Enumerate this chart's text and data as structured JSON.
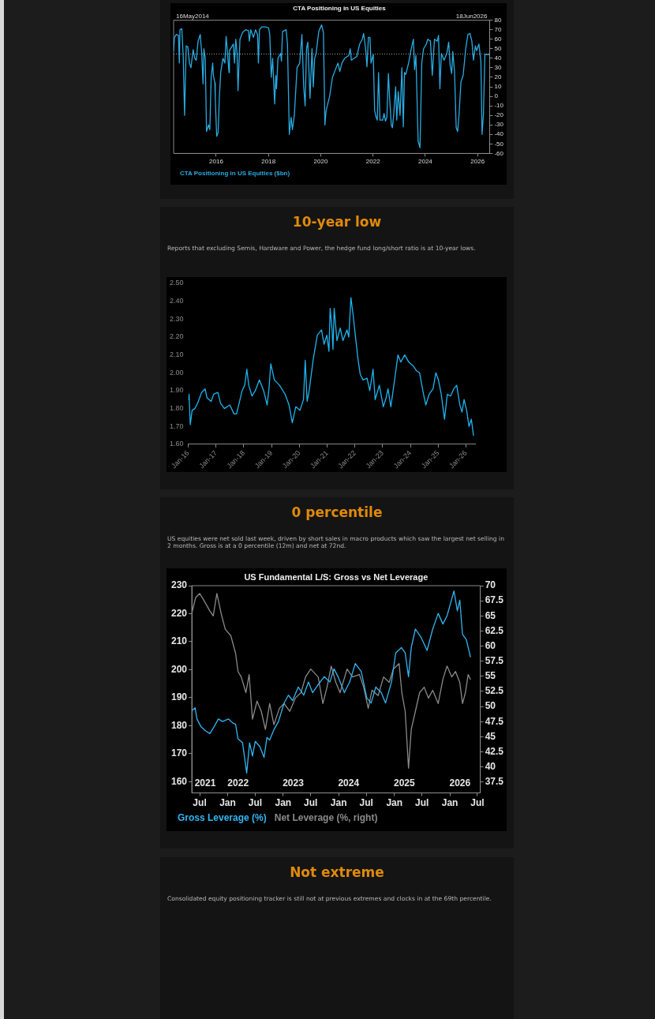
{
  "chart_data": [
    {
      "type": "line",
      "title": "CTA Positioning in US Equities",
      "legend": "bottom left",
      "xlim": [
        "2014-05-16",
        "2026-06-18"
      ],
      "xticks": [
        "2016",
        "2018",
        "2020",
        "2022",
        "2024",
        "2026"
      ],
      "y2lim": [
        -60,
        80
      ],
      "y2ticks": [
        -60,
        -50,
        -40,
        -30,
        -20,
        -10,
        0,
        10,
        20,
        30,
        40,
        50,
        60,
        70,
        80
      ],
      "ref_lines": [
        {
          "axis": "y2",
          "value": 44.5,
          "color": "#aaaaaa",
          "line_style": "dotted"
        }
      ],
      "annotations": [
        "16May2014",
        "18Jun2026"
      ],
      "series": [
        {
          "name": "CTA Positioning in US Equities ($bn)",
          "color": "#29abe2",
          "axis": "y2",
          "x": [
            "2014-05-16",
            "2014-05-28",
            "2014-06-23",
            "2014-07-23",
            "2014-08-04",
            "2014-08-13",
            "2014-09-08",
            "2014-09-28",
            "2014-10-16",
            "2014-11-08",
            "2014-12-01",
            "2014-12-23",
            "2015-01-13",
            "2015-02-13",
            "2015-03-08",
            "2015-03-28",
            "2015-04-23",
            "2015-05-23",
            "2015-06-13",
            "2015-07-01",
            "2015-07-13",
            "2015-08-01",
            "2015-08-19",
            "2015-09-16",
            "2015-10-04",
            "2015-10-23",
            "2015-11-13",
            "2015-11-23",
            "2015-12-13",
            "2015-12-19",
            "2016-01-08",
            "2016-01-28",
            "2016-02-15",
            "2016-03-04",
            "2016-04-04",
            "2016-05-01",
            "2016-05-19",
            "2016-06-08",
            "2016-06-28",
            "2016-07-04",
            "2016-08-04",
            "2016-08-28",
            "2016-09-13",
            "2016-10-01",
            "2016-10-19",
            "2016-11-01",
            "2016-11-28",
            "2017-01-04",
            "2017-02-13",
            "2017-03-28",
            "2017-04-08",
            "2017-04-28",
            "2017-06-04",
            "2017-07-04",
            "2017-08-01",
            "2017-08-13",
            "2017-08-28",
            "2017-09-28",
            "2017-11-23",
            "2018-01-01",
            "2018-01-19",
            "2018-02-08",
            "2018-02-28",
            "2018-03-28",
            "2018-04-13",
            "2018-04-23",
            "2018-05-13",
            "2018-06-19",
            "2018-07-01",
            "2018-07-16",
            "2018-09-04",
            "2018-09-23",
            "2018-10-19",
            "2018-11-13",
            "2018-12-01",
            "2018-12-28",
            "2019-02-04",
            "2019-03-13",
            "2019-04-13",
            "2019-05-08",
            "2019-05-28",
            "2019-06-16",
            "2019-07-04",
            "2019-08-04",
            "2019-09-01",
            "2019-09-19",
            "2019-10-08",
            "2019-10-28",
            "2019-12-04",
            "2020-01-13",
            "2020-02-08",
            "2020-02-28",
            "2020-03-16",
            "2020-05-04",
            "2020-06-13",
            "2020-08-28",
            "2020-09-23",
            "2020-10-23",
            "2020-12-01",
            "2021-01-28",
            "2021-02-16",
            "2021-03-04",
            "2021-04-13",
            "2021-05-19",
            "2021-06-28",
            "2021-08-04",
            "2021-08-23",
            "2021-09-19",
            "2021-10-08",
            "2021-10-28",
            "2021-11-19",
            "2021-12-04",
            "2022-01-04",
            "2022-01-23",
            "2022-02-13",
            "2022-03-01",
            "2022-03-19",
            "2022-04-08",
            "2022-05-16",
            "2022-06-04",
            "2022-06-23",
            "2022-07-13",
            "2022-08-04",
            "2022-08-19",
            "2022-09-13",
            "2022-09-28",
            "2022-10-16",
            "2022-11-13",
            "2022-11-28",
            "2022-12-19",
            "2023-01-13",
            "2023-02-08",
            "2023-02-28",
            "2023-03-16",
            "2023-04-04",
            "2023-05-13",
            "2023-06-13",
            "2023-07-19",
            "2023-08-04",
            "2023-08-23",
            "2023-09-23",
            "2023-10-19",
            "2023-11-13",
            "2023-12-08",
            "2024-01-16",
            "2024-02-04",
            "2024-03-13",
            "2024-04-08",
            "2024-05-08",
            "2024-06-16",
            "2024-07-04",
            "2024-07-23",
            "2024-08-13",
            "2024-09-19",
            "2024-10-28",
            "2024-11-23",
            "2024-12-13",
            "2025-01-04",
            "2025-01-19",
            "2025-02-13",
            "2025-03-08",
            "2025-03-28",
            "2025-04-16",
            "2025-05-13",
            "2025-06-13",
            "2025-07-19",
            "2025-08-19",
            "2025-09-16",
            "2025-10-13",
            "2025-11-04",
            "2025-12-01",
            "2025-12-19",
            "2026-01-19",
            "2026-02-16",
            "2026-03-04",
            "2026-03-23",
            "2026-04-13",
            "2026-06-18"
          ],
          "values": [
            48,
            62,
            65,
            64,
            35,
            70,
            71,
            40,
            -20,
            53,
            52,
            35,
            30,
            49,
            40,
            38,
            58,
            65,
            45,
            13,
            50,
            40,
            -37,
            -30,
            -35,
            20,
            35,
            22,
            14,
            -2,
            -42,
            -38,
            0,
            25,
            40,
            35,
            63,
            45,
            25,
            48,
            52,
            55,
            35,
            60,
            45,
            6,
            60,
            67,
            70,
            69,
            58,
            70,
            62,
            70,
            65,
            35,
            70,
            73,
            73,
            72,
            65,
            20,
            40,
            -8,
            22,
            8,
            40,
            45,
            37,
            68,
            70,
            55,
            -40,
            -22,
            -35,
            -20,
            30,
            35,
            65,
            10,
            -10,
            50,
            57,
            -2,
            50,
            10,
            40,
            45,
            68,
            75,
            67,
            -30,
            -15,
            0,
            20,
            35,
            26,
            35,
            40,
            43,
            50,
            38,
            40,
            42,
            55,
            60,
            66,
            50,
            31,
            62,
            62,
            35,
            44,
            -15,
            -22,
            -25,
            25,
            -25,
            -25,
            -18,
            -26,
            -22,
            24,
            0,
            -30,
            -33,
            -20,
            10,
            -25,
            5,
            -20,
            30,
            -32,
            25,
            23,
            35,
            48,
            60,
            28,
            43,
            -47,
            -54,
            35,
            50,
            55,
            60,
            58,
            22,
            60,
            58,
            64,
            8,
            45,
            38,
            45,
            57,
            33,
            24,
            47,
            25,
            -33,
            -37,
            -20,
            15,
            22,
            50,
            65,
            66,
            58,
            38,
            53,
            48,
            55,
            37,
            -40,
            -20,
            44,
            44
          ]
        }
      ]
    },
    {
      "type": "line",
      "title": "10-year low",
      "subtitle": "Reports that excluding Semis, Hardware and Power, the hedge fund long/short ratio is at 10-year lows.",
      "xlim": [
        "2016-01-01",
        "2026-05-01"
      ],
      "xticks": [
        {
          "value": "2016-01",
          "label": "Jan-16"
        },
        {
          "value": "2017-01",
          "label": "Jan-17"
        },
        {
          "value": "2018-01",
          "label": "Jan-18"
        },
        {
          "value": "2019-01",
          "label": "Jan-19"
        },
        {
          "value": "2020-01",
          "label": "Jan-20"
        },
        {
          "value": "2021-01",
          "label": "Jan-21"
        },
        {
          "value": "2022-01",
          "label": "Jan-22"
        },
        {
          "value": "2023-01",
          "label": "Jan-23"
        },
        {
          "value": "2024-01",
          "label": "Jan-24"
        },
        {
          "value": "2025-01",
          "label": "Jan-25"
        },
        {
          "value": "2026-01",
          "label": "Jan-26"
        }
      ],
      "ylim": [
        1.6,
        2.5
      ],
      "yticks": [
        {
          "value": 1.6,
          "label": "1.60"
        },
        {
          "value": 1.7,
          "label": "1.70"
        },
        {
          "value": 1.8,
          "label": "1.80"
        },
        {
          "value": 1.9,
          "label": "1.90"
        },
        {
          "value": 2.0,
          "label": "2.00"
        },
        {
          "value": 2.1,
          "label": "2.10"
        },
        {
          "value": 2.2,
          "label": "2.20"
        },
        {
          "value": 2.3,
          "label": "2.30"
        },
        {
          "value": 2.4,
          "label": "2.40"
        },
        {
          "value": 2.5,
          "label": "2.50"
        }
      ],
      "series": [
        {
          "color": "#1eb4ee",
          "x": [
            "2016-01-05",
            "2016-01-12",
            "2016-01-28",
            "2016-02-21",
            "2016-03-28",
            "2016-05-04",
            "2016-06-25",
            "2016-08-10",
            "2016-09-04",
            "2016-10-28",
            "2016-12-01",
            "2017-01-25",
            "2017-03-01",
            "2017-04-21",
            "2017-07-01",
            "2017-08-25",
            "2017-09-28",
            "2017-12-10",
            "2018-01-13",
            "2018-02-10",
            "2018-03-07",
            "2018-04-19",
            "2018-06-01",
            "2018-07-25",
            "2018-09-19",
            "2018-11-04",
            "2018-11-28",
            "2018-12-22",
            "2019-02-07",
            "2019-04-16",
            "2019-06-28",
            "2019-08-19",
            "2019-10-01",
            "2019-11-16",
            "2020-01-10",
            "2020-02-25",
            "2020-03-19",
            "2020-04-13",
            "2020-05-10",
            "2020-07-04",
            "2020-08-25",
            "2020-10-19",
            "2020-11-22",
            "2020-12-28",
            "2021-01-25",
            "2021-02-10",
            "2021-03-07",
            "2021-03-19",
            "2021-04-04",
            "2021-05-10",
            "2021-06-22",
            "2021-07-28",
            "2021-09-19",
            "2021-10-13",
            "2021-11-10",
            "2021-12-10",
            "2022-01-04",
            "2022-02-10",
            "2022-03-13",
            "2022-04-19",
            "2022-06-10",
            "2022-07-16",
            "2022-08-28",
            "2022-09-25",
            "2022-11-19",
            "2023-01-10",
            "2023-02-16",
            "2023-03-13",
            "2023-04-19",
            "2023-06-01",
            "2023-07-22",
            "2023-08-28",
            "2023-10-19",
            "2023-12-10",
            "2024-02-04",
            "2024-03-25",
            "2024-05-01",
            "2024-06-22",
            "2024-07-22",
            "2024-09-04",
            "2024-10-25",
            "2024-12-01",
            "2025-01-04",
            "2025-02-10",
            "2025-03-25",
            "2025-05-01",
            "2025-06-13",
            "2025-07-25",
            "2025-09-01",
            "2025-10-13",
            "2025-11-10",
            "2025-12-07",
            "2026-01-10",
            "2026-02-10",
            "2026-03-13",
            "2026-04-10"
          ],
          "values": [
            1.85,
            1.88,
            1.71,
            1.79,
            1.8,
            1.83,
            1.89,
            1.91,
            1.86,
            1.84,
            1.88,
            1.89,
            1.83,
            1.8,
            1.82,
            1.77,
            1.77,
            1.9,
            1.93,
            2.02,
            1.93,
            1.87,
            1.9,
            1.96,
            1.9,
            1.82,
            1.91,
            2.05,
            1.96,
            1.93,
            1.88,
            1.82,
            1.72,
            1.81,
            1.79,
            1.85,
            2.07,
            1.84,
            1.9,
            2.08,
            2.21,
            2.24,
            2.16,
            2.21,
            2.12,
            2.36,
            2.24,
            2.13,
            2.36,
            2.18,
            2.25,
            2.18,
            2.24,
            2.2,
            2.42,
            2.32,
            2.22,
            2.08,
            1.99,
            1.96,
            1.97,
            1.9,
            2.02,
            1.85,
            1.93,
            1.81,
            1.86,
            1.91,
            1.81,
            1.94,
            2.1,
            2.06,
            2.1,
            2.06,
            2.04,
            2.01,
            2.0,
            1.88,
            1.82,
            1.88,
            1.91,
            2.0,
            1.96,
            1.88,
            1.74,
            1.88,
            1.87,
            1.91,
            1.93,
            1.82,
            1.78,
            1.85,
            1.79,
            1.7,
            1.74,
            1.65
          ]
        }
      ]
    },
    {
      "type": "line",
      "title": "0 percentile",
      "subtitle": "US equities were net sold last week, driven by short sales in macro products which saw the largest net selling in 2 months. Gross is at a 0 percentile (12m) and net at 72nd.",
      "legend": "bottom left",
      "annotations": [
        "US Fundamental L/S: Gross vs Net Leverage",
        "2021",
        "2022",
        "2023",
        "2024",
        "2025",
        "2026"
      ],
      "xlim": [
        "2021-05-10",
        "2026-07-20"
      ],
      "xticks": [
        {
          "value": "2021-07",
          "label": "Jul"
        },
        {
          "value": "2022-01",
          "label": "Jan"
        },
        {
          "value": "2022-07",
          "label": "Jul"
        },
        {
          "value": "2023-01",
          "label": "Jan"
        },
        {
          "value": "2023-07",
          "label": "Jul"
        },
        {
          "value": "2024-01",
          "label": "Jan"
        },
        {
          "value": "2024-07",
          "label": "Jul"
        },
        {
          "value": "2025-01",
          "label": "Jan"
        },
        {
          "value": "2025-07",
          "label": "Jul"
        },
        {
          "value": "2026-01",
          "label": "Jan"
        },
        {
          "value": "2026-07",
          "label": "Jul"
        }
      ],
      "ylim": [
        156,
        230
      ],
      "yticks": [
        160,
        170,
        180,
        190,
        200,
        210,
        220,
        230
      ],
      "y2lim": [
        35.7,
        70
      ],
      "y2ticks": [
        37.5,
        40,
        42.5,
        45,
        47.5,
        50,
        52.5,
        55,
        57.5,
        60,
        62.5,
        65,
        67.5,
        70
      ],
      "series": [
        {
          "name": "Gross Leverage (%)",
          "color": "#33b5f0",
          "x": [
            "2021-05-10",
            "2021-06-01",
            "2021-06-13",
            "2021-07-10",
            "2021-08-07",
            "2021-09-06",
            "2021-10-03",
            "2021-11-01",
            "2021-11-28",
            "2022-01-07",
            "2022-02-03",
            "2022-02-22",
            "2022-03-10",
            "2022-04-09",
            "2022-05-06",
            "2022-05-25",
            "2022-06-13",
            "2022-07-01",
            "2022-08-01",
            "2022-08-28",
            "2022-09-16",
            "2022-10-04",
            "2022-11-01",
            "2022-12-01",
            "2023-01-07",
            "2023-02-04",
            "2023-03-04",
            "2023-04-10",
            "2023-05-16",
            "2023-06-16",
            "2023-07-13",
            "2023-08-19",
            "2023-09-28",
            "2023-11-04",
            "2023-12-01",
            "2023-12-28",
            "2024-02-07",
            "2024-03-13",
            "2024-04-19",
            "2024-05-28",
            "2024-07-04",
            "2024-08-01",
            "2024-09-01",
            "2024-10-07",
            "2024-11-04",
            "2024-12-13",
            "2025-01-10",
            "2025-02-16",
            "2025-03-13",
            "2025-04-04",
            "2025-04-22",
            "2025-05-19",
            "2025-06-25",
            "2025-08-04",
            "2025-09-10",
            "2025-10-16",
            "2025-11-16",
            "2025-12-13",
            "2026-01-28",
            "2026-02-19",
            "2026-03-07",
            "2026-03-25",
            "2026-04-19",
            "2026-05-16"
          ],
          "values": [
            185.3,
            186.4,
            182.4,
            179.6,
            178.2,
            177.2,
            179.6,
            182.4,
            181.5,
            182.4,
            181,
            180.5,
            175.3,
            173.9,
            163.1,
            173.9,
            169.2,
            174.4,
            172.5,
            168.7,
            175.8,
            174.9,
            178.6,
            181.5,
            188.1,
            190.9,
            189,
            193.8,
            190.9,
            195.6,
            191.8,
            194.7,
            197.5,
            195.6,
            200.3,
            197.5,
            191.8,
            195.6,
            202.2,
            199.4,
            189.9,
            188.1,
            193.8,
            191.8,
            188.1,
            195.6,
            206,
            207.9,
            206,
            197.5,
            207.9,
            214.5,
            211.6,
            206.9,
            214.5,
            220.1,
            216.3,
            219.2,
            228.1,
            221,
            224.8,
            212.6,
            210.7,
            204.6
          ]
        },
        {
          "name": "Net Leverage (%, right)",
          "color": "#8a8a8a",
          "axis": "y2",
          "x": [
            "2021-05-10",
            "2021-06-04",
            "2021-07-01",
            "2021-07-28",
            "2021-09-06",
            "2021-09-28",
            "2021-10-22",
            "2021-11-19",
            "2021-12-16",
            "2022-01-22",
            "2022-02-22",
            "2022-03-10",
            "2022-03-31",
            "2022-05-01",
            "2022-05-22",
            "2022-06-13",
            "2022-07-13",
            "2022-08-10",
            "2022-09-06",
            "2022-10-04",
            "2022-11-01",
            "2022-12-07",
            "2023-01-07",
            "2023-02-13",
            "2023-03-22",
            "2023-04-28",
            "2023-05-28",
            "2023-07-01",
            "2023-08-19",
            "2023-09-19",
            "2023-10-16",
            "2023-11-13",
            "2023-12-13",
            "2024-01-10",
            "2024-02-25",
            "2024-04-01",
            "2024-05-16",
            "2024-06-13",
            "2024-07-13",
            "2024-08-07",
            "2024-09-16",
            "2024-10-22",
            "2024-11-28",
            "2024-12-25",
            "2025-02-01",
            "2025-02-19",
            "2025-03-13",
            "2025-04-04",
            "2025-04-22",
            "2025-05-19",
            "2025-06-16",
            "2025-07-16",
            "2025-08-13",
            "2025-09-10",
            "2025-10-16",
            "2025-11-16",
            "2025-12-13",
            "2026-01-13",
            "2026-02-07",
            "2026-03-07",
            "2026-03-25",
            "2026-04-13",
            "2026-05-01",
            "2026-05-16"
          ],
          "values": [
            65.4,
            68,
            68.7,
            67.6,
            65.8,
            65,
            68.7,
            65.4,
            62.8,
            61.7,
            58.8,
            55.8,
            54.9,
            52.3,
            55.3,
            47.9,
            50.9,
            49.2,
            46.2,
            50.5,
            47,
            49.7,
            50.5,
            49.2,
            51.4,
            52.3,
            54.9,
            56.2,
            54.9,
            50.5,
            53.2,
            56.7,
            54,
            52.3,
            56.2,
            54.9,
            55.3,
            53.2,
            49.7,
            52.7,
            51.8,
            54.9,
            54,
            56.2,
            57.1,
            52.3,
            49.2,
            39.8,
            46.2,
            49.2,
            52.3,
            53.2,
            51.4,
            52.7,
            50.5,
            54.5,
            56.7,
            54.9,
            55.8,
            54,
            50.5,
            52.3,
            55.3,
            54.5
          ]
        }
      ]
    },
    {
      "type": "other",
      "title": "Not extreme",
      "subtitle": "Consolidated equity positioning tracker is still not at previous extremes and clocks in at the 69th percentile."
    }
  ]
}
